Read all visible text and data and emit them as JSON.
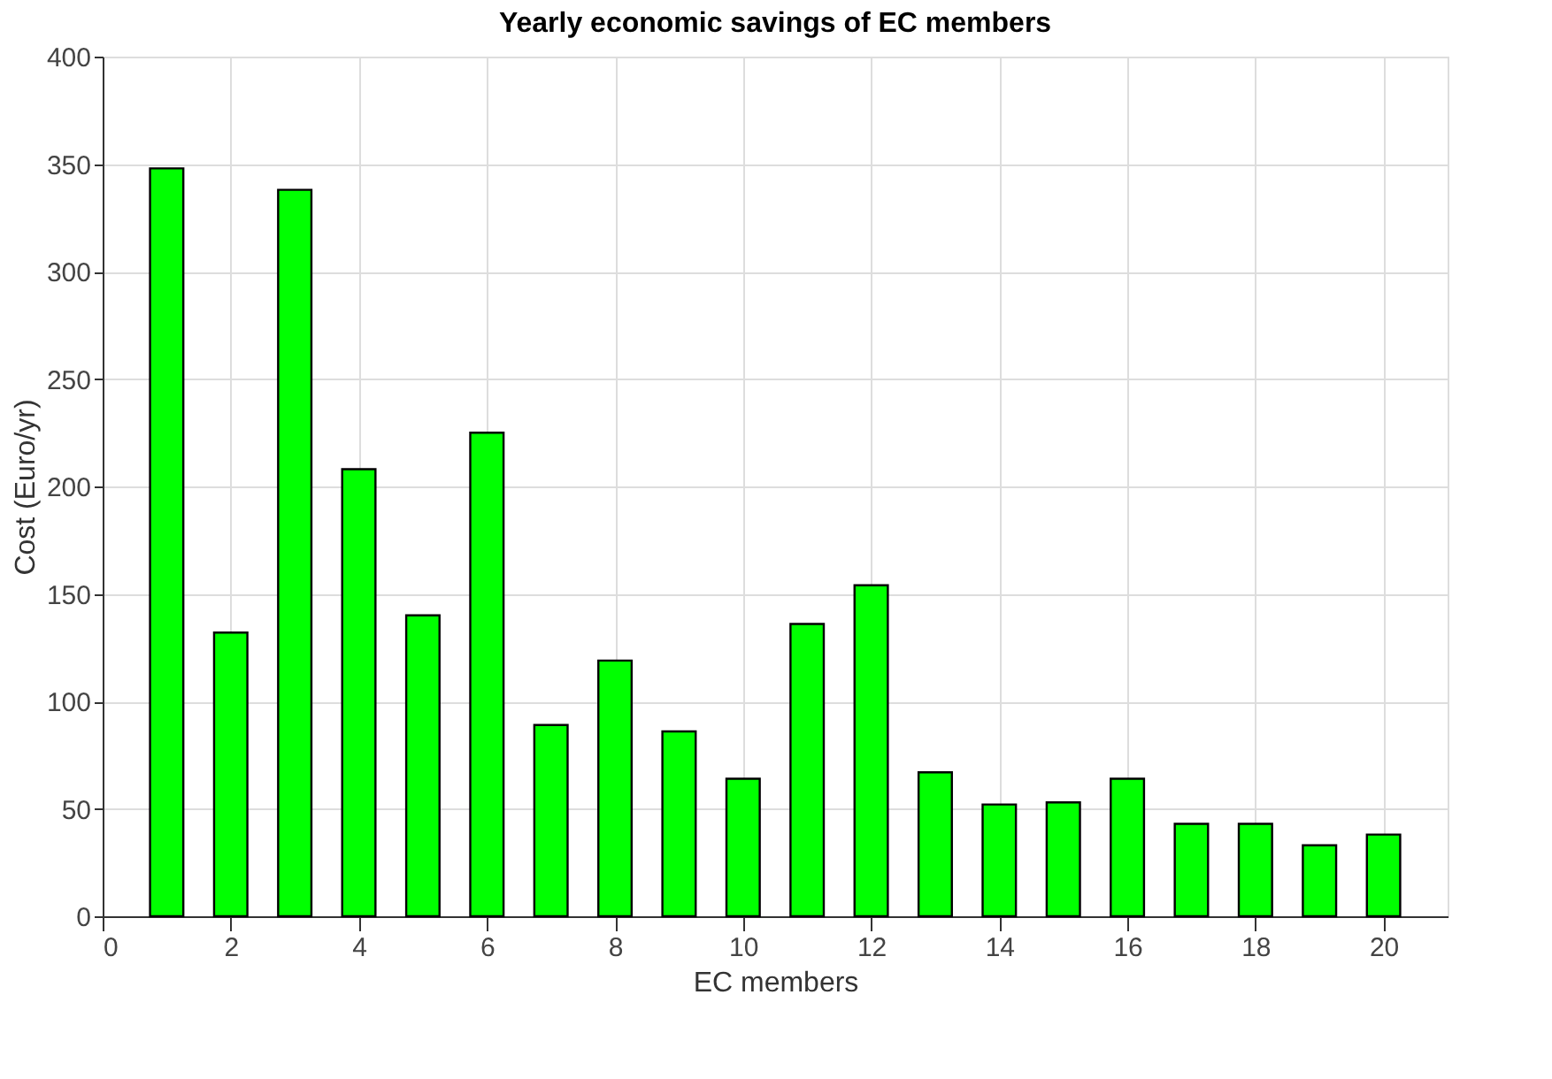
{
  "chart_data": {
    "type": "bar",
    "title": "Yearly economic savings of EC members",
    "xlabel": "EC members",
    "ylabel": "Cost (Euro/yr)",
    "x": [
      1,
      2,
      3,
      4,
      5,
      6,
      7,
      8,
      9,
      10,
      11,
      12,
      13,
      14,
      15,
      16,
      17,
      18,
      19,
      20
    ],
    "series": [
      {
        "color": "#00ff00",
        "values": [
          348,
          132,
          338,
          208,
          140,
          225,
          89,
          119,
          86,
          64,
          136,
          154,
          67,
          52,
          53,
          64,
          43,
          43,
          33,
          38
        ]
      }
    ],
    "xlim": [
      0,
      21
    ],
    "xticks": [
      0,
      2,
      4,
      6,
      8,
      10,
      12,
      14,
      16,
      18,
      20
    ],
    "ylim": [
      0,
      400
    ],
    "yticks": [
      0,
      50,
      100,
      150,
      200,
      250,
      300,
      350,
      400
    ],
    "grid": true
  }
}
